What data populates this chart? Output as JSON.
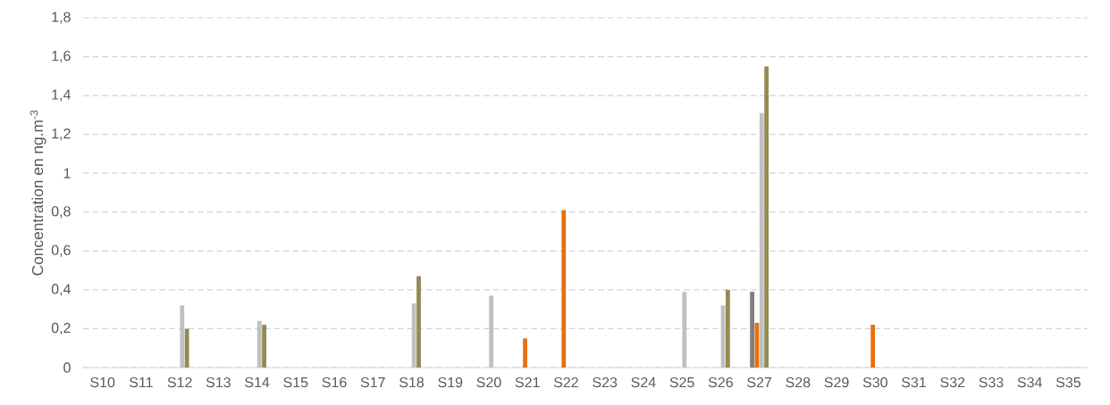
{
  "chart_data": {
    "type": "bar",
    "ylabel": "Concentration en ng.m$^{-3}$",
    "categories": [
      "S10",
      "S11",
      "S12",
      "S13",
      "S14",
      "S15",
      "S16",
      "S17",
      "S18",
      "S19",
      "S20",
      "S21",
      "S22",
      "S23",
      "S24",
      "S25",
      "S26",
      "S27",
      "S28",
      "S29",
      "S30",
      "S31",
      "S32",
      "S33",
      "S34",
      "S35"
    ],
    "series": [
      {
        "color": "#7f7f7f",
        "values": [
          null,
          null,
          null,
          null,
          null,
          null,
          null,
          null,
          null,
          null,
          null,
          null,
          null,
          null,
          null,
          null,
          null,
          0.39,
          null,
          null,
          null,
          null,
          null,
          null,
          null,
          null
        ]
      },
      {
        "color": "#e8700e",
        "values": [
          null,
          null,
          null,
          null,
          null,
          null,
          null,
          null,
          null,
          null,
          null,
          0.15,
          0.81,
          null,
          null,
          null,
          null,
          0.23,
          null,
          null,
          0.22,
          null,
          null,
          null,
          null,
          null
        ]
      },
      {
        "color": "#c0c0c0",
        "values": [
          null,
          null,
          0.32,
          null,
          0.24,
          null,
          null,
          null,
          0.33,
          null,
          0.37,
          null,
          null,
          null,
          null,
          0.39,
          0.32,
          1.31,
          null,
          null,
          null,
          null,
          null,
          null,
          null,
          null
        ]
      },
      {
        "color": "#948a54",
        "values": [
          null,
          null,
          0.2,
          null,
          0.22,
          null,
          null,
          null,
          0.47,
          null,
          null,
          null,
          null,
          null,
          null,
          null,
          0.4,
          1.55,
          null,
          null,
          null,
          null,
          null,
          null,
          null,
          null
        ]
      }
    ],
    "ylim": [
      0,
      1.8
    ],
    "yticks": [
      0,
      {
        "value": 0.2,
        "label": "0,2"
      },
      {
        "value": 0.4,
        "label": "0,4"
      },
      {
        "value": 0.6,
        "label": "0,6"
      },
      {
        "value": 0.8,
        "label": "0,8"
      },
      1,
      {
        "value": 1.2,
        "label": "1,2"
      },
      {
        "value": 1.4,
        "label": "1,4"
      },
      {
        "value": 1.6,
        "label": "1,6"
      },
      {
        "value": 1.8,
        "label": "1,8"
      }
    ],
    "grid": "y"
  }
}
